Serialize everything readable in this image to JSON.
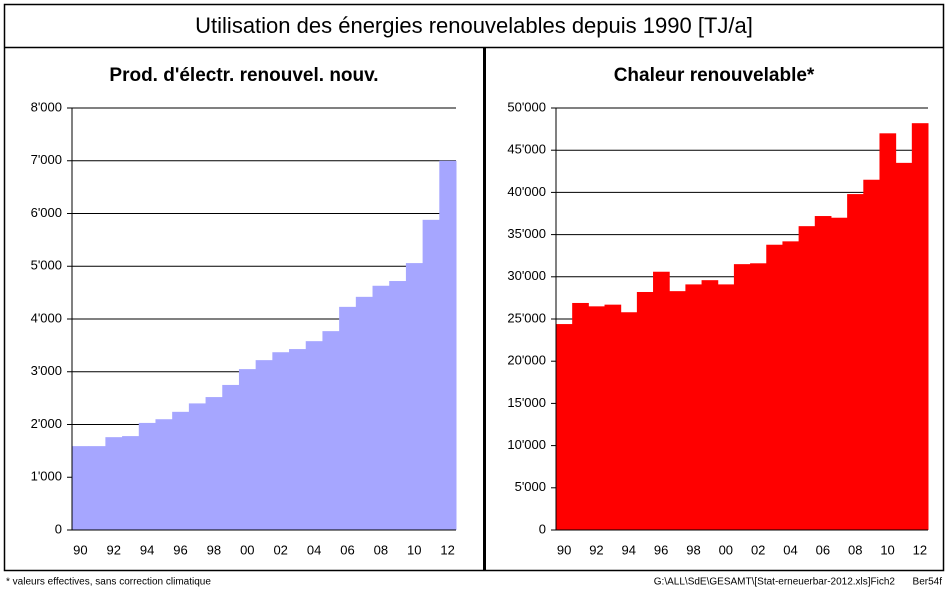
{
  "title": "Utilisation des énergies renouvelables depuis 1990  [TJ/a]",
  "chart_data": [
    {
      "type": "bar",
      "title": "Prod. d'électr. renouvel. nouv.",
      "categories": [
        "90",
        null,
        "92",
        null,
        "94",
        null,
        "96",
        null,
        "98",
        null,
        "00",
        null,
        "02",
        null,
        "04",
        null,
        "06",
        null,
        "08",
        null,
        "10",
        null,
        "12"
      ],
      "values": [
        1590,
        1590,
        1760,
        1780,
        2030,
        2100,
        2240,
        2400,
        2520,
        2750,
        3050,
        3220,
        3370,
        3430,
        3580,
        3770,
        4230,
        4420,
        4630,
        4720,
        5060,
        5880,
        7000
      ],
      "color": "#a6a6ff",
      "ylim": [
        0,
        8000
      ],
      "yticks": [
        0,
        {
          "value": 1000,
          "label": "1'000"
        },
        {
          "value": 2000,
          "label": "2'000"
        },
        {
          "value": 3000,
          "label": "3'000"
        },
        {
          "value": 4000,
          "label": "4'000"
        },
        {
          "value": 5000,
          "label": "5'000"
        },
        {
          "value": 6000,
          "label": "6'000"
        },
        {
          "value": 7000,
          "label": "7'000"
        },
        {
          "value": 8000,
          "label": "8'000"
        }
      ],
      "grid": true
    },
    {
      "type": "bar",
      "title": "Chaleur renouvelable*",
      "categories": [
        "90",
        null,
        "92",
        null,
        "94",
        null,
        "96",
        null,
        "98",
        null,
        "00",
        null,
        "02",
        null,
        "04",
        null,
        "06",
        null,
        "08",
        null,
        "10",
        null,
        "12"
      ],
      "values": [
        24400,
        26900,
        26500,
        26700,
        25800,
        28200,
        30600,
        28300,
        29100,
        29600,
        29100,
        31500,
        31600,
        33800,
        34200,
        36000,
        37200,
        37000,
        39800,
        41500,
        47000,
        43500,
        48200
      ],
      "color": "#ff0000",
      "ylim": [
        0,
        50000
      ],
      "yticks": [
        0,
        {
          "value": 5000,
          "label": "5'000"
        },
        {
          "value": 10000,
          "label": "10'000"
        },
        {
          "value": 15000,
          "label": "15'000"
        },
        {
          "value": 20000,
          "label": "20'000"
        },
        {
          "value": 25000,
          "label": "25'000"
        },
        {
          "value": 30000,
          "label": "30'000"
        },
        {
          "value": 35000,
          "label": "35'000"
        },
        {
          "value": 40000,
          "label": "40'000"
        },
        {
          "value": 45000,
          "label": "45'000"
        },
        {
          "value": 50000,
          "label": "50'000"
        }
      ],
      "grid": true
    }
  ],
  "footnote": "* valeurs effectives, sans correction climatique",
  "file_path": "G:\\ALL\\SdE\\GESAMT\\[Stat-erneuerbar-2012.xls]Fich2",
  "sheet_code": "Ber54f"
}
